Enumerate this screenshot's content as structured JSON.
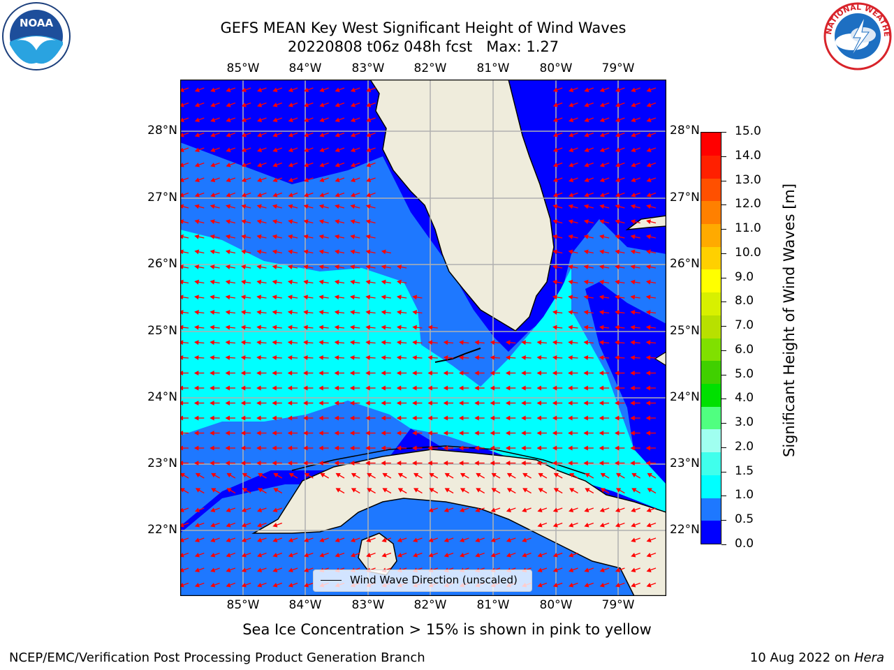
{
  "title": {
    "line1": "GEFS MEAN Key West Significant Height of Wind Waves",
    "line2": "20220808 t06z 048h fcst   Max: 1.27"
  },
  "logos": {
    "left": "NOAA",
    "right": "NATIONAL WEATHER SERVICE"
  },
  "map": {
    "lon_labels": [
      "85°W",
      "84°W",
      "83°W",
      "82°W",
      "81°W",
      "80°W",
      "79°W"
    ],
    "lat_labels": [
      "28°N",
      "27°N",
      "26°N",
      "25°N",
      "24°N",
      "23°N",
      "22°N"
    ],
    "legend_label": "Wind Wave Direction (unscaled)",
    "arrow_color": "#ff0000",
    "land_color": "#efecdc"
  },
  "colorbar": {
    "label": "Significant Height of Wind Waves [m]",
    "ticks": [
      "15.0",
      "14.0",
      "13.0",
      "12.0",
      "11.0",
      "10.0",
      "9.0",
      "8.0",
      "7.0",
      "6.0",
      "5.0",
      "4.0",
      "3.0",
      "2.0",
      "1.5",
      "1.0",
      "0.5",
      "0.0"
    ],
    "colors": [
      "#0000ff",
      "#1e78ff",
      "#00ffff",
      "#40ffec",
      "#a0fff0",
      "#50ff80",
      "#00e000",
      "#40d000",
      "#80e000",
      "#b8e000",
      "#d8f000",
      "#ffff00",
      "#ffd000",
      "#ffaa00",
      "#ff8000",
      "#ff5000",
      "#ff2000",
      "#ff0000"
    ]
  },
  "caption": "Sea Ice Concentration > 15% is shown in pink to yellow",
  "footer": {
    "left": "NCEP/EMC/Verification Post Processing Product Generation Branch",
    "date": "10 Aug 2022 on",
    "machine": "Hera"
  }
}
